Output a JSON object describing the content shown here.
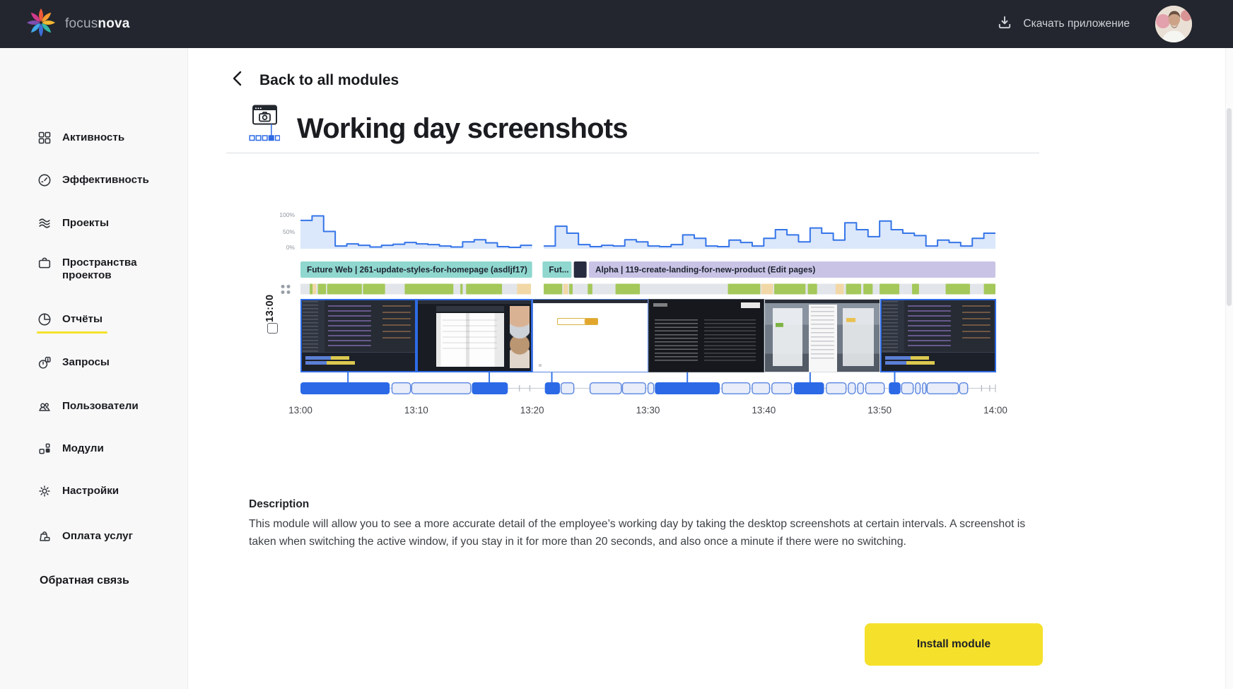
{
  "header": {
    "brand_light": "focus",
    "brand_bold": "nova",
    "download_label": "Скачать приложение"
  },
  "sidebar": {
    "items": [
      {
        "label": "Активность",
        "icon": "grid"
      },
      {
        "label": "Эффективность",
        "icon": "gauge"
      },
      {
        "label": "Проекты",
        "icon": "layers"
      },
      {
        "label": "Пространства проектов",
        "icon": "briefcase"
      },
      {
        "label": "Отчёты",
        "icon": "pie-chart",
        "active": true
      },
      {
        "label": "Запросы",
        "icon": "request"
      },
      {
        "label": "Пользователи",
        "icon": "users"
      },
      {
        "label": "Модули",
        "icon": "modules"
      },
      {
        "label": "Настройки",
        "icon": "gear"
      },
      {
        "label": "Оплата услуг",
        "icon": "payment"
      }
    ],
    "feedback_link": "Обратная связь"
  },
  "main": {
    "back_label": "Back to all modules",
    "title": "Working day screenshots",
    "description_heading": "Description",
    "description_text": "This module will allow you to see a more accurate detail of the employee’s working day by taking the desktop screenshots at certain intervals. A screenshot is taken when switching the active window, if you stay in it for more than 20 seconds, and also once a minute if there were no switching.",
    "install_button_label": "Install module"
  },
  "preview": {
    "type": "module-preview-timeline",
    "row_label": "13:00",
    "percent_labels": [
      "100%",
      "50%",
      "0%"
    ],
    "time_labels": [
      "13:00",
      "13:10",
      "13:20",
      "13:30",
      "13:40",
      "13:50",
      "14:00"
    ],
    "colors": {
      "line": "#3575e8",
      "fill": "#dbe7fb",
      "solid_bar": "#2b69e6",
      "light_bar_fill": "#e8edf9",
      "light_bar_stroke": "#5b86e0",
      "green": "#a4c85a",
      "peach": "#f2d8a7",
      "strip_base": "#e2e5e9",
      "teal": "#8fd7cf",
      "purple": "#c9c4e6",
      "navy": "#272c3f"
    },
    "activity_segments": [
      {
        "start_min": 0,
        "step_min": 1,
        "values": [
          82,
          95,
          50,
          8,
          14,
          10,
          5,
          10,
          13,
          18,
          14,
          12,
          8,
          5,
          20,
          26,
          17,
          6,
          4,
          10
        ]
      },
      {
        "start_min": 21,
        "step_min": 1,
        "values": [
          8,
          65,
          45,
          12,
          6,
          10,
          8,
          26,
          20,
          8,
          6,
          12,
          40,
          30,
          8,
          6,
          25,
          18,
          8,
          30,
          55,
          40,
          20,
          60,
          45,
          25,
          75,
          55,
          35,
          80,
          55,
          45,
          38,
          8,
          25,
          18,
          8,
          30,
          45
        ]
      }
    ],
    "tasks": [
      {
        "label": "Future Web | 261-update-styles-for-homepage (asdljf17)",
        "start_min": 0,
        "end_min": 20,
        "color": "#8fd7cf"
      },
      {
        "label": "Fut...",
        "start_min": 20.9,
        "end_min": 23.4,
        "color": "#8fd7cf"
      },
      {
        "label": "",
        "start_min": 23.6,
        "end_min": 24.7,
        "color": "#272c3f"
      },
      {
        "label": "Alpha | 119-create-landing-for-new-product (Edit pages)",
        "start_min": 24.9,
        "end_min": 60,
        "color": "#c9c4e6"
      }
    ],
    "focus_strip": {
      "base_spans": [
        [
          0,
          19.9
        ],
        [
          21,
          60
        ]
      ],
      "segments": [
        {
          "s": 0.8,
          "e": 1.05,
          "k": "green"
        },
        {
          "s": 1.05,
          "e": 1.35,
          "k": "peach"
        },
        {
          "s": 1.5,
          "e": 2.2,
          "k": "green"
        },
        {
          "s": 2.3,
          "e": 5.3,
          "k": "green"
        },
        {
          "s": 5.4,
          "e": 7.3,
          "k": "green"
        },
        {
          "s": 9.0,
          "e": 13.2,
          "k": "green"
        },
        {
          "s": 13.8,
          "e": 14.0,
          "k": "green"
        },
        {
          "s": 14.3,
          "e": 17.4,
          "k": "green"
        },
        {
          "s": 18.7,
          "e": 19.9,
          "k": "peach"
        },
        {
          "s": 21.0,
          "e": 22.6,
          "k": "green"
        },
        {
          "s": 22.7,
          "e": 23.1,
          "k": "peach"
        },
        {
          "s": 23.2,
          "e": 23.5,
          "k": "green"
        },
        {
          "s": 24.8,
          "e": 25.2,
          "k": "green"
        },
        {
          "s": 27.2,
          "e": 29.3,
          "k": "green"
        },
        {
          "s": 36.9,
          "e": 39.7,
          "k": "green"
        },
        {
          "s": 39.8,
          "e": 40.8,
          "k": "peach"
        },
        {
          "s": 40.9,
          "e": 43.6,
          "k": "green"
        },
        {
          "s": 43.8,
          "e": 44.6,
          "k": "green"
        },
        {
          "s": 46.2,
          "e": 46.9,
          "k": "peach"
        },
        {
          "s": 47.1,
          "e": 48.4,
          "k": "green"
        },
        {
          "s": 48.6,
          "e": 49.4,
          "k": "green"
        },
        {
          "s": 50.0,
          "e": 51.7,
          "k": "green"
        },
        {
          "s": 52.8,
          "e": 53.4,
          "k": "green"
        },
        {
          "s": 55.7,
          "e": 57.8,
          "k": "green"
        },
        {
          "s": 59.0,
          "e": 60,
          "k": "green"
        }
      ]
    },
    "screenshots": [
      {
        "variant": "ide-dark",
        "border": "blue"
      },
      {
        "variant": "video-call",
        "border": "blue"
      },
      {
        "variant": "document-white",
        "border": "thin-blue"
      },
      {
        "variant": "terminal-dark",
        "border": "dark"
      },
      {
        "variant": "browser-doc",
        "border": "none"
      },
      {
        "variant": "ide-dark",
        "border": "blue"
      }
    ],
    "connectors_min": [
      4.1,
      16.3,
      21.7,
      33.4,
      44.0,
      51.3
    ],
    "timeline_segments": [
      {
        "s": 0,
        "e": 7.7,
        "solid": true
      },
      {
        "s": 7.9,
        "e": 9.5,
        "solid": false
      },
      {
        "s": 9.6,
        "e": 14.7,
        "solid": false
      },
      {
        "s": 14.8,
        "e": 17.9,
        "solid": true
      },
      {
        "s": 21.1,
        "e": 22.4,
        "solid": true
      },
      {
        "s": 22.5,
        "e": 23.6,
        "solid": false
      },
      {
        "s": 25.0,
        "e": 27.7,
        "solid": false
      },
      {
        "s": 27.8,
        "e": 29.8,
        "solid": false
      },
      {
        "s": 30.0,
        "e": 30.5,
        "solid": false
      },
      {
        "s": 30.6,
        "e": 36.2,
        "solid": true
      },
      {
        "s": 36.4,
        "e": 38.8,
        "solid": false
      },
      {
        "s": 39.0,
        "e": 40.5,
        "solid": false
      },
      {
        "s": 40.7,
        "e": 42.4,
        "solid": false
      },
      {
        "s": 42.6,
        "e": 45.2,
        "solid": true
      },
      {
        "s": 45.4,
        "e": 47.1,
        "solid": false
      },
      {
        "s": 47.3,
        "e": 47.9,
        "solid": false
      },
      {
        "s": 48.1,
        "e": 48.6,
        "solid": false
      },
      {
        "s": 48.8,
        "e": 50.4,
        "solid": false
      },
      {
        "s": 50.8,
        "e": 51.8,
        "solid": true
      },
      {
        "s": 51.9,
        "e": 52.9,
        "solid": false
      },
      {
        "s": 53.1,
        "e": 53.5,
        "solid": false
      },
      {
        "s": 53.7,
        "e": 54.0,
        "solid": false
      },
      {
        "s": 54.1,
        "e": 56.8,
        "solid": false
      },
      {
        "s": 56.9,
        "e": 57.6,
        "solid": false
      }
    ],
    "axis_plus_ticks_min": [
      18.9,
      19.8,
      58.8,
      59.5
    ]
  }
}
